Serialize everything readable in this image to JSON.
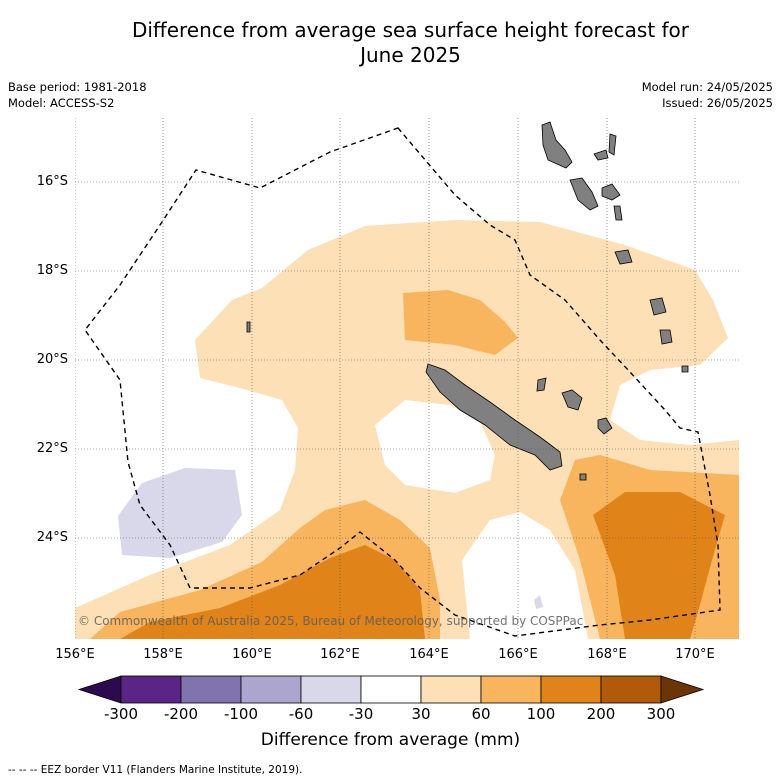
{
  "title_line1": "Difference from average sea surface height forecast for",
  "title_line2": "June 2025",
  "base_period": "Base period: 1981-2018",
  "model": "Model: ACCESS-S2",
  "model_run": "Model run: 24/05/2025",
  "issued": "Issued: 26/05/2025",
  "latitude_labels": [
    "16°S",
    "18°S",
    "20°S",
    "22°S",
    "24°S"
  ],
  "longitude_labels": [
    "156°E",
    "158°E",
    "160°E",
    "162°E",
    "164°E",
    "166°E",
    "168°E",
    "170°E"
  ],
  "credit": "© Commonwealth of Australia 2025, Bureau of Meteorology, supported by COSPPac",
  "colorbar": {
    "label": "Difference from average (mm)",
    "ticks": [
      "-300",
      "-200",
      "-100",
      "-60",
      "-30",
      "30",
      "60",
      "100",
      "200",
      "300"
    ],
    "colors": [
      "#2d0a4e",
      "#5a2587",
      "#8173ae",
      "#aca6cf",
      "#d8d8ea",
      "#ffffff",
      "#fde0b5",
      "#f9b45e",
      "#e08419",
      "#b05a0a",
      "#6b3505"
    ]
  },
  "legend_note": "--  --  -- EEZ border V11 (Flanders Marine Institute, 2019).",
  "colors": {
    "land": "#808080",
    "eez_border": "#000000",
    "grid": "#555555"
  }
}
